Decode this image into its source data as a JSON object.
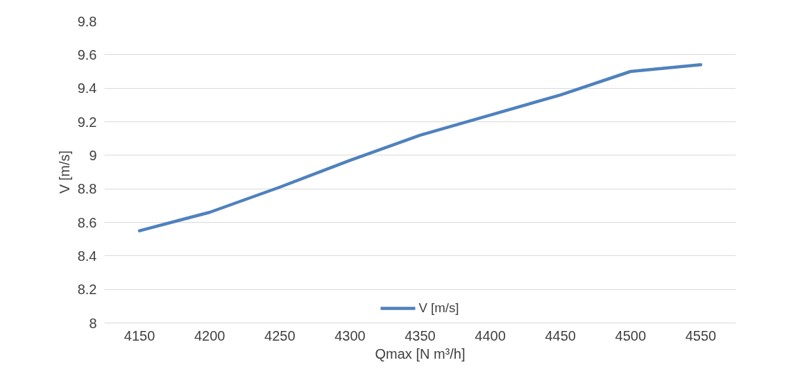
{
  "chart_data": {
    "type": "line",
    "xlabel": "Qmax [N m³/h]",
    "ylabel": "V [m/s]",
    "x": [
      4150,
      4200,
      4250,
      4300,
      4350,
      4400,
      4450,
      4500,
      4550
    ],
    "series": [
      {
        "name": "V [m/s]",
        "color": "#4f81bd",
        "values": [
          8.55,
          8.66,
          8.81,
          8.97,
          9.12,
          9.24,
          9.36,
          9.5,
          9.54
        ]
      }
    ],
    "xlim": [
      4125,
      4575
    ],
    "xticks": [
      4150,
      4200,
      4250,
      4300,
      4350,
      4400,
      4450,
      4500,
      4550
    ],
    "ylim": [
      8,
      9.8
    ],
    "yticks": [
      8,
      8.2,
      8.4,
      8.6,
      8.8,
      9,
      9.2,
      9.4,
      9.6,
      9.8
    ],
    "grid": "y",
    "legend": "bottom",
    "marker": "none",
    "line_style": "solid"
  }
}
